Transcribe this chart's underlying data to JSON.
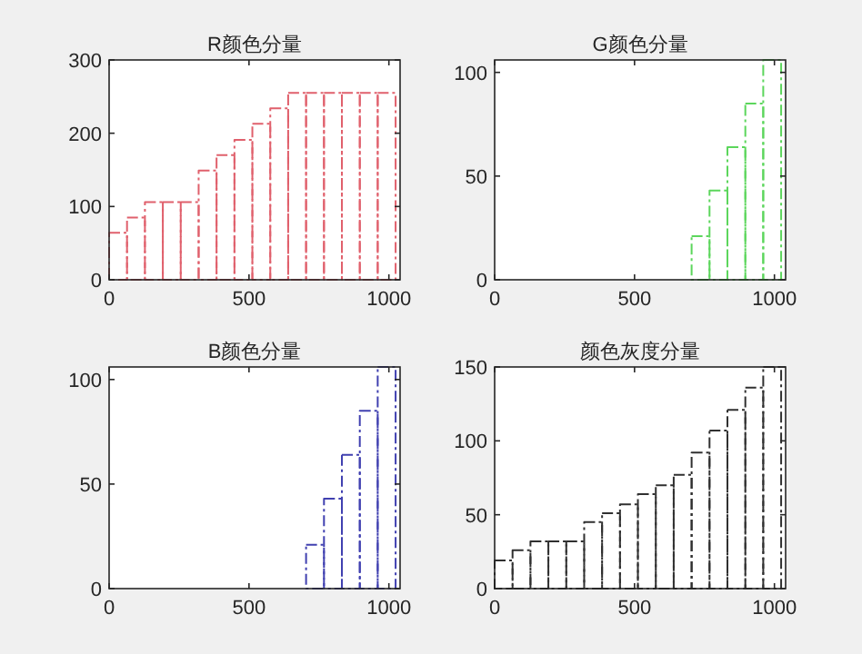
{
  "chart_data": [
    {
      "type": "histogram",
      "title": "R颜色分量",
      "bins": [
        0,
        64,
        128,
        192,
        256,
        320,
        384,
        448,
        512,
        576,
        640,
        704,
        768,
        832,
        896,
        960,
        1024
      ],
      "values": [
        64,
        85,
        106,
        106,
        106,
        149,
        170,
        191,
        213,
        234,
        255,
        255,
        255,
        255,
        255,
        255
      ],
      "color": "#e0606c",
      "line_style": "dashed",
      "xlim": [
        0,
        1040
      ],
      "xticks": [
        0,
        500,
        1000
      ],
      "ylim": [
        0,
        300
      ],
      "yticks": [
        0,
        100,
        200,
        300
      ]
    },
    {
      "type": "histogram",
      "title": "G颜色分量",
      "bins": [
        0,
        64,
        128,
        192,
        256,
        320,
        384,
        448,
        512,
        576,
        640,
        704,
        768,
        832,
        896,
        960,
        1024
      ],
      "values": [
        0,
        0,
        0,
        0,
        0,
        0,
        0,
        0,
        0,
        0,
        0,
        21,
        43,
        64,
        85,
        106
      ],
      "color": "#5cd65c",
      "line_style": "dashed",
      "xlim": [
        0,
        1040
      ],
      "xticks": [
        0,
        500,
        1000
      ],
      "ylim": [
        0,
        106
      ],
      "yticks": [
        0,
        50,
        100
      ]
    },
    {
      "type": "histogram",
      "title": "B颜色分量",
      "bins": [
        0,
        64,
        128,
        192,
        256,
        320,
        384,
        448,
        512,
        576,
        640,
        704,
        768,
        832,
        896,
        960,
        1024
      ],
      "values": [
        0,
        0,
        0,
        0,
        0,
        0,
        0,
        0,
        0,
        0,
        0,
        21,
        43,
        64,
        85,
        106
      ],
      "color": "#4040b0",
      "line_style": "dashed",
      "xlim": [
        0,
        1040
      ],
      "xticks": [
        0,
        500,
        1000
      ],
      "ylim": [
        0,
        106
      ],
      "yticks": [
        0,
        50,
        100
      ]
    },
    {
      "type": "histogram",
      "title": "颜色灰度分量",
      "bins": [
        0,
        64,
        128,
        192,
        256,
        320,
        384,
        448,
        512,
        576,
        640,
        704,
        768,
        832,
        896,
        960,
        1024
      ],
      "values": [
        19,
        26,
        32,
        32,
        32,
        45,
        51,
        57,
        64,
        70,
        77,
        92,
        107,
        121,
        136,
        150
      ],
      "color": "#303030",
      "line_style": "dashed",
      "xlim": [
        0,
        1040
      ],
      "xticks": [
        0,
        500,
        1000
      ],
      "ylim": [
        0,
        150
      ],
      "yticks": [
        0,
        50,
        100,
        150
      ]
    }
  ]
}
